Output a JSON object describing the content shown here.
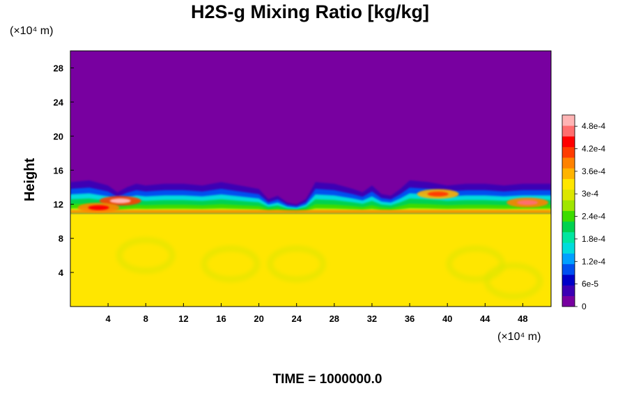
{
  "chart_data": {
    "type": "heatmap",
    "title": "H2S-g Mixing Ratio [kg/kg]",
    "ylabel": "Height",
    "x_unit_label": "(×10⁴ m)",
    "y_unit_label": "(×10⁴ m)",
    "xlim": [
      0,
      51
    ],
    "ylim": [
      0,
      30
    ],
    "x_ticks": [
      "4",
      "8",
      "12",
      "16",
      "20",
      "24",
      "28",
      "32",
      "36",
      "40",
      "44",
      "48"
    ],
    "x_tick_values": [
      4,
      8,
      12,
      16,
      20,
      24,
      28,
      32,
      36,
      40,
      44,
      48
    ],
    "y_ticks": [
      "4",
      "8",
      "12",
      "16",
      "20",
      "24",
      "28"
    ],
    "y_tick_values": [
      4,
      8,
      12,
      16,
      20,
      24,
      28
    ],
    "colorbar": {
      "range": [
        0,
        0.00051
      ],
      "tick_labels": [
        "0",
        "6e-5",
        "1.2e-4",
        "1.8e-4",
        "2.4e-4",
        "3e-4",
        "3.6e-4",
        "4.2e-4",
        "4.8e-4"
      ],
      "tick_values": [
        0,
        6e-05,
        0.00012,
        0.00018,
        0.00024,
        0.0003,
        0.00036,
        0.00042,
        0.00048
      ],
      "colors": [
        "#7800a0",
        "#3c00b4",
        "#0000c8",
        "#0050f0",
        "#00a0ff",
        "#00dcdc",
        "#00e6a0",
        "#00d250",
        "#3cdc00",
        "#a0e600",
        "#dce600",
        "#ffe600",
        "#ffb400",
        "#ff8200",
        "#ff3c00",
        "#ff0000",
        "#ff6e6e",
        "#ffb4b4"
      ]
    },
    "field": {
      "background_value": 0,
      "lower_layer_value": 0.00033,
      "lower_layer_top": 11,
      "mixing_layer_top": [
        [
          0,
          14.6
        ],
        [
          2,
          14.8
        ],
        [
          4,
          14.2
        ],
        [
          5,
          13.4
        ],
        [
          6,
          14
        ],
        [
          7,
          14.4
        ],
        [
          8,
          14.2
        ],
        [
          10,
          14.4
        ],
        [
          12,
          14.4
        ],
        [
          14,
          14.2
        ],
        [
          16,
          14.6
        ],
        [
          18,
          14.2
        ],
        [
          20,
          13.8
        ],
        [
          21,
          12.6
        ],
        [
          22,
          13
        ],
        [
          23,
          12.2
        ],
        [
          24,
          12
        ],
        [
          25,
          12.6
        ],
        [
          26,
          14.6
        ],
        [
          28,
          14.4
        ],
        [
          30,
          13.8
        ],
        [
          31,
          13.4
        ],
        [
          32,
          14.2
        ],
        [
          33,
          13.2
        ],
        [
          34,
          13
        ],
        [
          35,
          13.8
        ],
        [
          36,
          14.8
        ],
        [
          38,
          14.6
        ],
        [
          40,
          14.2
        ],
        [
          42,
          14.4
        ],
        [
          44,
          14.4
        ],
        [
          46,
          14.2
        ],
        [
          48,
          14.4
        ],
        [
          50,
          14.4
        ],
        [
          51,
          14.4
        ]
      ],
      "hotspots": [
        {
          "x": 5.3,
          "y": 12.4,
          "value": 0.0005
        },
        {
          "x": 3,
          "y": 11.6,
          "value": 0.00044
        },
        {
          "x": 48.5,
          "y": 12.2,
          "value": 0.00046
        },
        {
          "x": 39,
          "y": 13.2,
          "value": 0.00042
        }
      ]
    },
    "time_label": "TIME = 1000000.0"
  }
}
